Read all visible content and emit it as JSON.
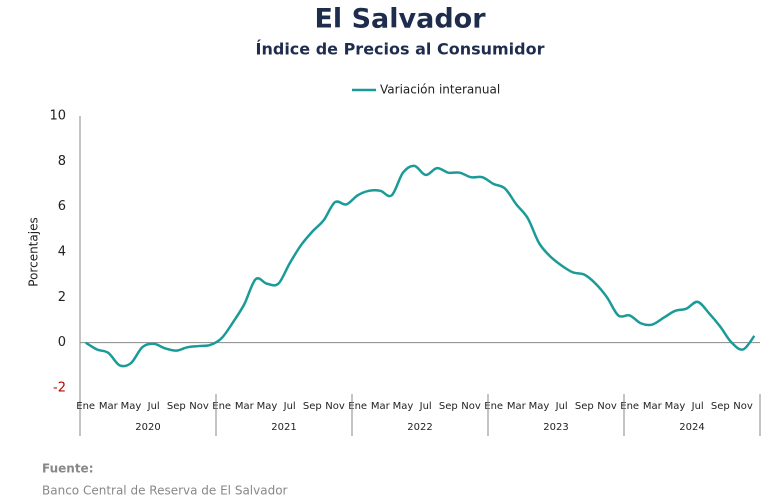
{
  "chart_data": {
    "type": "line",
    "title": "El Salvador",
    "subtitle": "Índice de Precios al Consumidor",
    "y_label": "Porcentajes",
    "source_label": "Fuente:",
    "source": "Banco Central de Reserva de El Salvador",
    "categories": [
      "Ene",
      null,
      "Mar",
      null,
      "May",
      null,
      "Jul",
      null,
      "Sep",
      null,
      "Nov",
      null,
      "Ene",
      null,
      "Mar",
      null,
      "May",
      null,
      "Jul",
      null,
      "Sep",
      null,
      "Nov",
      null,
      "Ene",
      null,
      "Mar",
      null,
      "May",
      null,
      "Jul",
      null,
      "Sep",
      null,
      "Nov",
      null,
      "Ene",
      null,
      "Mar",
      null,
      "May",
      null,
      "Jul",
      null,
      "Sep",
      null,
      "Nov",
      null,
      "Ene",
      null,
      "Mar",
      null,
      "May",
      null,
      "Jul",
      null,
      "Sep",
      null,
      "Nov",
      null
    ],
    "years": [
      "2020",
      "2021",
      "2022",
      "2023",
      "2024"
    ],
    "series": [
      {
        "name": "Variación interanual",
        "color": "#1a9b98",
        "values": [
          0.0,
          -0.3,
          -0.45,
          -1.0,
          -0.9,
          -0.2,
          -0.05,
          -0.25,
          -0.35,
          -0.2,
          -0.15,
          -0.1,
          0.2,
          0.9,
          1.7,
          2.8,
          2.6,
          2.6,
          3.5,
          4.3,
          4.9,
          5.4,
          6.2,
          6.1,
          6.5,
          6.7,
          6.7,
          6.5,
          7.5,
          7.8,
          7.4,
          7.7,
          7.5,
          7.5,
          7.3,
          7.3,
          7.0,
          6.8,
          6.1,
          5.5,
          4.4,
          3.8,
          3.4,
          3.1,
          3.0,
          2.6,
          2.0,
          1.2,
          1.2,
          0.85,
          0.8,
          1.1,
          1.4,
          1.5,
          1.8,
          1.3,
          0.7,
          0.0,
          -0.3,
          0.3
        ]
      }
    ],
    "ylim": [
      -2,
      10
    ],
    "yticks": [
      -2,
      0,
      2,
      4,
      6,
      8,
      10
    ],
    "negative_tick_color": "#c00000",
    "grid": false,
    "legend": "top"
  }
}
